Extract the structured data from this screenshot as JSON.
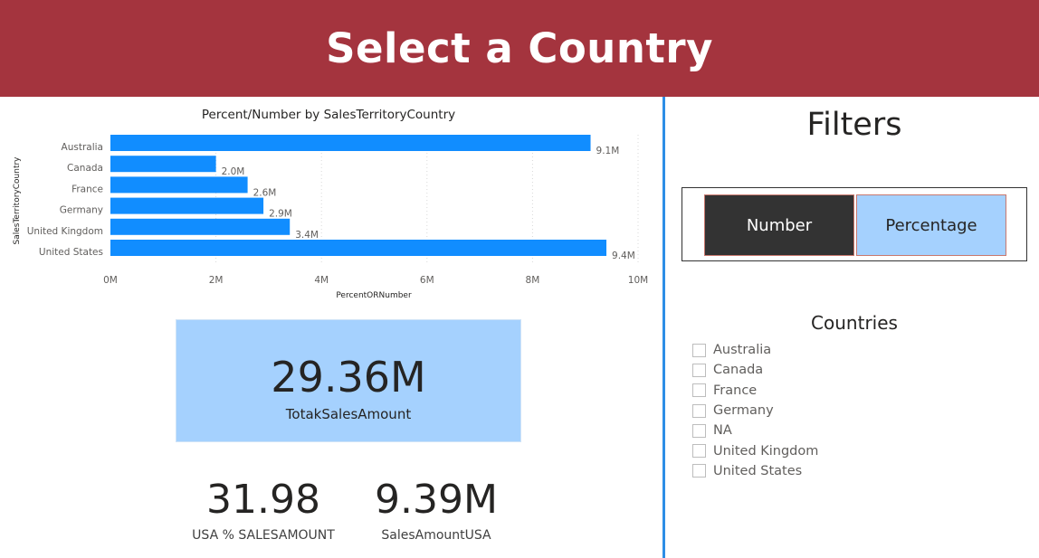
{
  "header": {
    "title": "Select a Country"
  },
  "chart_data": {
    "type": "bar",
    "orientation": "horizontal",
    "title": "Percent/Number by SalesTerritoryCountry",
    "xlabel": "PercentORNumber",
    "ylabel": "SalesTerritoryCountry",
    "categories": [
      "Australia",
      "Canada",
      "France",
      "Germany",
      "United Kingdom",
      "United States"
    ],
    "values": [
      9.1,
      2.0,
      2.6,
      2.9,
      3.4,
      9.4
    ],
    "value_unit": "M",
    "data_labels": [
      "9.1M",
      "2.0M",
      "2.6M",
      "2.9M",
      "3.4M",
      "9.4M"
    ],
    "xlim": [
      0,
      10
    ],
    "x_ticks": [
      0,
      2,
      4,
      6,
      8,
      10
    ],
    "x_tick_labels": [
      "0M",
      "2M",
      "4M",
      "6M",
      "8M",
      "10M"
    ],
    "grid": true,
    "bar_color": "#118dff"
  },
  "cards": {
    "total": {
      "value": "29.36M",
      "label": "TotakSalesAmount"
    },
    "usa_pct": {
      "value": "31.98",
      "label": "USA % SALESAMOUNT"
    },
    "usa_amount": {
      "value": "9.39M",
      "label": "SalesAmountUSA"
    }
  },
  "filters": {
    "title": "Filters",
    "toggle": {
      "number_label": "Number",
      "percentage_label": "Percentage",
      "selected": "Number"
    },
    "countries_title": "Countries",
    "countries": [
      {
        "label": "Australia",
        "checked": false
      },
      {
        "label": "Canada",
        "checked": false
      },
      {
        "label": "France",
        "checked": false
      },
      {
        "label": "Germany",
        "checked": false
      },
      {
        "label": "NA",
        "checked": false
      },
      {
        "label": "United Kingdom",
        "checked": false
      },
      {
        "label": "United States",
        "checked": false
      }
    ]
  },
  "colors": {
    "header_bg": "#a4343e",
    "accent_blue": "#2d8ee6",
    "card_bg": "#a5d1fe",
    "dark_button": "#333333"
  }
}
